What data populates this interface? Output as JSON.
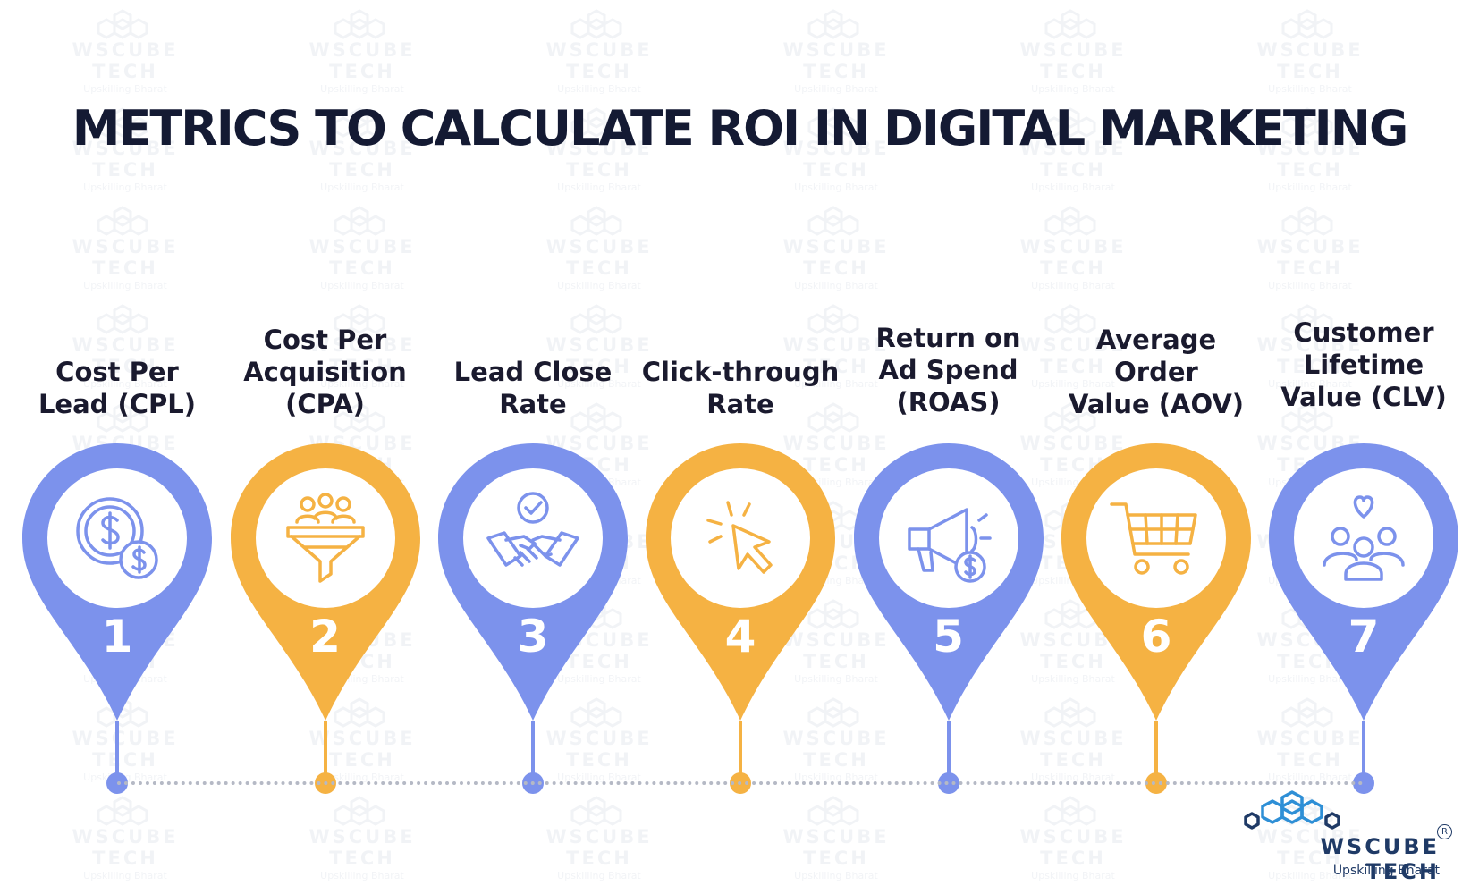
{
  "title": "METRICS TO CALCULATE ROI IN DIGITAL MARKETING",
  "colors": {
    "blue": "#7c92ec",
    "orange": "#f5b243",
    "title": "#141a33",
    "label": "#1a1a2e",
    "brand": "#1f3a66",
    "brand_icon": "#2e8fd6",
    "timeline": "#b5b9c5"
  },
  "metrics": [
    {
      "number": "1",
      "label_lines": [
        "Cost Per",
        "Lead (CPL)"
      ],
      "color": "blue",
      "icon": "dollar-coins-icon"
    },
    {
      "number": "2",
      "label_lines": [
        "Cost Per",
        "Acquisition",
        "(CPA)"
      ],
      "color": "orange",
      "icon": "funnel-people-icon"
    },
    {
      "number": "3",
      "label_lines": [
        "Lead Close",
        "Rate"
      ],
      "color": "blue",
      "icon": "handshake-check-icon"
    },
    {
      "number": "4",
      "label_lines": [
        "Click-through",
        "Rate"
      ],
      "color": "orange",
      "icon": "cursor-click-icon"
    },
    {
      "number": "5",
      "label_lines": [
        "Return on",
        "Ad Spend",
        "(ROAS)"
      ],
      "color": "blue",
      "icon": "megaphone-dollar-icon"
    },
    {
      "number": "6",
      "label_lines": [
        "Average Order",
        "Value (AOV)"
      ],
      "color": "orange",
      "icon": "shopping-cart-icon"
    },
    {
      "number": "7",
      "label_lines": [
        "Customer",
        "Lifetime",
        "Value (CLV)"
      ],
      "color": "blue",
      "icon": "customers-heart-icon"
    }
  ],
  "brand": {
    "name": "WSCUBE TECH",
    "tagline": "Upskilling Bharat",
    "registered_mark": "R"
  },
  "watermark": {
    "name": "WSCUBE TECH",
    "tagline": "Upskilling Bharat"
  }
}
